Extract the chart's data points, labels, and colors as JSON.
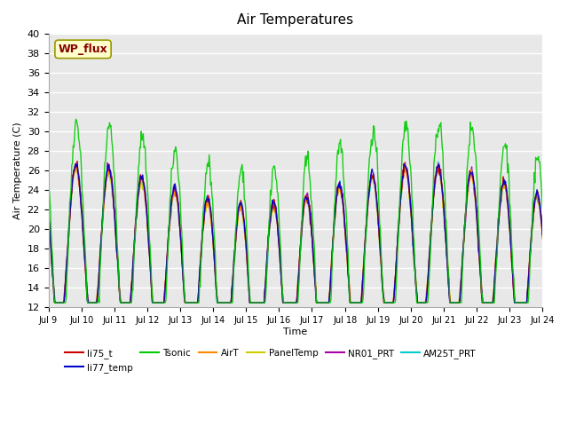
{
  "title": "Air Temperatures",
  "ylabel": "Air Temperature (C)",
  "xlabel": "Time",
  "ylim": [
    12,
    40
  ],
  "yticks": [
    12,
    14,
    16,
    18,
    20,
    22,
    24,
    26,
    28,
    30,
    32,
    34,
    36,
    38,
    40
  ],
  "xtick_labels": [
    "Jul 9",
    "Jul 10",
    "Jul 11",
    "Jul 12",
    "Jul 13",
    "Jul 14",
    "Jul 15",
    "Jul 16",
    "Jul 17",
    "Jul 18",
    "Jul 19",
    "Jul 20",
    "Jul 21",
    "Jul 22",
    "Jul 23",
    "Jul 24"
  ],
  "series_colors": {
    "li75_t": "#cc0000",
    "li77_temp": "#0000cc",
    "Tsonic": "#00cc00",
    "AirT": "#ff8800",
    "PanelTemp": "#cccc00",
    "NR01_PRT": "#aa00aa",
    "AM25T_PRT": "#00cccc"
  },
  "series_order": [
    "li75_t",
    "li77_temp",
    "Tsonic",
    "AirT",
    "PanelTemp",
    "NR01_PRT",
    "AM25T_PRT"
  ],
  "legend_label": "WP_flux",
  "background_color": "#e8e8e8",
  "n_days": 15,
  "base_day": 9
}
